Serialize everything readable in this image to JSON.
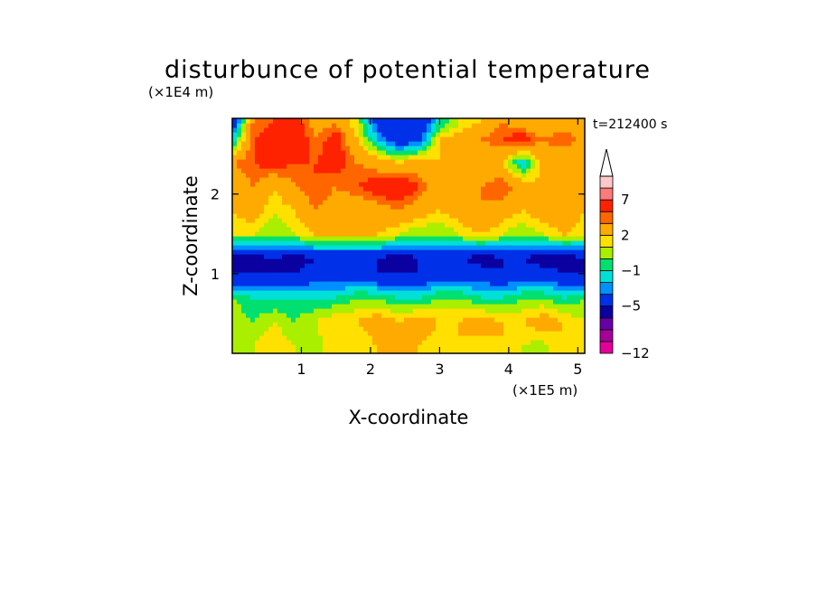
{
  "chart_data": {
    "type": "heatmap",
    "title": "disturbunce of potential temperature",
    "xlabel": "X-coordinate",
    "ylabel": "Z-coordinate",
    "x_unit": "(×1E5 m)",
    "y_unit": "(×1E4 m)",
    "time_label": "t=212400 s",
    "xlim": [
      0.0,
      5.1
    ],
    "ylim": [
      0.0,
      2.95
    ],
    "x_ticks": [
      1,
      2,
      3,
      4,
      5
    ],
    "y_ticks": [
      1,
      2
    ],
    "colorbar": {
      "levels": [
        -12,
        -11,
        -9,
        -7,
        -5,
        -3,
        -2,
        -1,
        0,
        1,
        2,
        4,
        5,
        7,
        8,
        10
      ],
      "tick_labels": [
        "7",
        "2",
        "−1",
        "−5",
        "−12"
      ],
      "tick_values": [
        7,
        2,
        -1,
        -5,
        -12
      ],
      "colors": [
        "#e4009a",
        "#a6009a",
        "#6800a6",
        "#0b00a0",
        "#0030e8",
        "#0090ff",
        "#00e0d8",
        "#00e070",
        "#aaee00",
        "#ffe000",
        "#ffaa00",
        "#ff6600",
        "#ff2200",
        "#ff7a7a",
        "#ffc8c8"
      ],
      "extend": "max"
    },
    "z_rows_bottom_to_top": [
      {
        "z": 0.1,
        "values": [
          0.5,
          1,
          2,
          1,
          0.5,
          2,
          1,
          2,
          3,
          2,
          1,
          2,
          1,
          2,
          1,
          0.5,
          2,
          1
        ]
      },
      {
        "z": 0.4,
        "values": [
          1,
          0,
          1,
          0,
          1,
          2,
          2,
          3,
          2,
          3,
          2,
          2,
          3,
          2,
          2,
          3,
          2,
          1
        ]
      },
      {
        "z": 0.7,
        "values": [
          0,
          -1,
          -1,
          -1,
          -1,
          -1,
          0,
          0,
          -1,
          -1,
          0,
          0,
          -1,
          -1,
          0,
          0,
          -1,
          0
        ]
      },
      {
        "z": 1.0,
        "values": [
          -5,
          -5,
          -5,
          -5,
          -4,
          -4,
          -4,
          -5,
          -5,
          -5,
          -4,
          -4,
          -4,
          -5,
          -4,
          -4,
          -5,
          -5
        ]
      },
      {
        "z": 1.2,
        "values": [
          -6,
          -6,
          -5,
          -6,
          -5,
          -5,
          -5,
          -5,
          -6,
          -5,
          -5,
          -5,
          -6,
          -5,
          -5,
          -6,
          -6,
          -5
        ]
      },
      {
        "z": 1.5,
        "values": [
          1,
          1,
          0,
          1,
          2,
          2,
          2,
          2,
          1,
          0,
          0,
          1,
          2,
          1,
          0,
          1,
          2,
          1
        ]
      },
      {
        "z": 1.8,
        "values": [
          2,
          3,
          1,
          2,
          4,
          3,
          2,
          3,
          4,
          3,
          2,
          3,
          4,
          3,
          2,
          3,
          4,
          2
        ]
      },
      {
        "z": 2.1,
        "values": [
          2,
          4,
          2,
          4,
          5,
          4,
          5,
          6,
          7,
          5,
          3,
          2,
          4,
          5,
          3,
          2,
          4,
          3
        ]
      },
      {
        "z": 2.4,
        "values": [
          4,
          5,
          6,
          5,
          5,
          6,
          4,
          3,
          2,
          3,
          2,
          4,
          3,
          2,
          -2,
          3,
          2,
          3
        ]
      },
      {
        "z": 2.7,
        "values": [
          -2,
          5,
          6,
          7,
          4,
          6,
          2,
          -2,
          -5,
          -4,
          2,
          3,
          4,
          5,
          6,
          4,
          5,
          3
        ]
      },
      {
        "z": 2.9,
        "values": [
          -5,
          4,
          5,
          6,
          3,
          4,
          1,
          -4,
          -5,
          -5,
          -1,
          1,
          2,
          4,
          3,
          2,
          3,
          2
        ]
      }
    ]
  }
}
